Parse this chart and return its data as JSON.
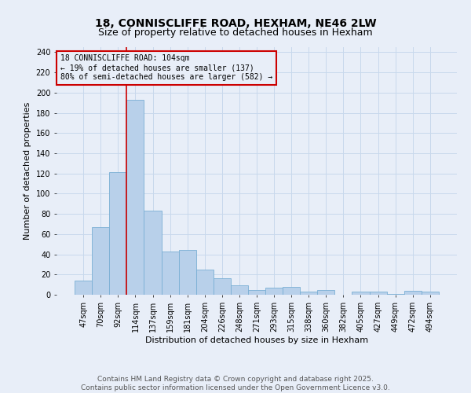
{
  "title": "18, CONNISCLIFFE ROAD, HEXHAM, NE46 2LW",
  "subtitle": "Size of property relative to detached houses in Hexham",
  "xlabel": "Distribution of detached houses by size in Hexham",
  "ylabel": "Number of detached properties",
  "categories": [
    "47sqm",
    "70sqm",
    "92sqm",
    "114sqm",
    "137sqm",
    "159sqm",
    "181sqm",
    "204sqm",
    "226sqm",
    "248sqm",
    "271sqm",
    "293sqm",
    "315sqm",
    "338sqm",
    "360sqm",
    "382sqm",
    "405sqm",
    "427sqm",
    "449sqm",
    "472sqm",
    "494sqm"
  ],
  "values": [
    14,
    67,
    121,
    193,
    83,
    43,
    44,
    25,
    16,
    9,
    5,
    7,
    8,
    3,
    5,
    0,
    3,
    3,
    1,
    4,
    3
  ],
  "bar_color": "#b8d0ea",
  "bar_edge_color": "#7aafd4",
  "grid_color": "#c8d8ec",
  "background_color": "#e8eef8",
  "vline_x_index": 2.5,
  "vline_color": "#cc0000",
  "annotation_line1": "18 CONNISCLIFFE ROAD: 104sqm",
  "annotation_line2": "← 19% of detached houses are smaller (137)",
  "annotation_line3": "80% of semi-detached houses are larger (582) →",
  "annotation_box_edge_color": "#cc0000",
  "footnote": "Contains HM Land Registry data © Crown copyright and database right 2025.\nContains public sector information licensed under the Open Government Licence v3.0.",
  "ylim": [
    0,
    245
  ],
  "yticks": [
    0,
    20,
    40,
    60,
    80,
    100,
    120,
    140,
    160,
    180,
    200,
    220,
    240
  ],
  "title_fontsize": 10,
  "subtitle_fontsize": 9,
  "label_fontsize": 8,
  "tick_fontsize": 7,
  "annotation_fontsize": 7,
  "footnote_fontsize": 6.5
}
